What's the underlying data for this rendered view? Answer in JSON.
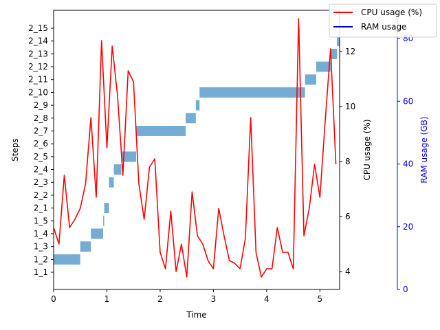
{
  "chart_data": {
    "type": "gantt-line",
    "xlabel": "Time",
    "ylabel": "Steps",
    "y2label": "CPU usage (%)",
    "y3label": "RAM usage (GB)",
    "xlim": [
      0,
      5.37
    ],
    "xticks": [
      0,
      1,
      2,
      3,
      4,
      5
    ],
    "step_labels": [
      "1_1",
      "1_2",
      "1_3",
      "1_4",
      "1_5",
      "2_1",
      "2_2",
      "2_3",
      "2_4",
      "2_5",
      "2_6",
      "2_7",
      "2_8",
      "2_9",
      "2_10",
      "2_11",
      "2_12",
      "2_13",
      "2_14",
      "2_15"
    ],
    "steps": [
      {
        "step": "1_2",
        "start": 0.0,
        "end": 0.5
      },
      {
        "step": "1_3",
        "start": 0.5,
        "end": 0.7
      },
      {
        "step": "1_4",
        "start": 0.7,
        "end": 0.93
      },
      {
        "step": "1_5",
        "start": 0.93,
        "end": 0.95
      },
      {
        "step": "2_1",
        "start": 0.95,
        "end": 1.04
      },
      {
        "step": "2_3",
        "start": 1.04,
        "end": 1.13
      },
      {
        "step": "2_4",
        "start": 1.13,
        "end": 1.27
      },
      {
        "step": "2_5",
        "start": 1.27,
        "end": 1.55
      },
      {
        "step": "2_7",
        "start": 1.55,
        "end": 2.48
      },
      {
        "step": "2_8",
        "start": 2.48,
        "end": 2.67
      },
      {
        "step": "2_9",
        "start": 2.67,
        "end": 2.74
      },
      {
        "step": "2_10",
        "start": 2.74,
        "end": 4.72
      },
      {
        "step": "2_11",
        "start": 4.72,
        "end": 4.93
      },
      {
        "step": "2_12",
        "start": 4.93,
        "end": 5.2
      },
      {
        "step": "2_13",
        "start": 5.2,
        "end": 5.32
      },
      {
        "step": "2_14",
        "start": 5.32,
        "end": 5.37
      }
    ],
    "cpu_ylim": [
      3.35,
      13.5
    ],
    "cpu_ticks": [
      4,
      6,
      8,
      10,
      12
    ],
    "cpu_series": {
      "name": "CPU usage (%)",
      "color": "#ff0000",
      "x": [
        0.0,
        0.1,
        0.2,
        0.3,
        0.4,
        0.5,
        0.6,
        0.7,
        0.8,
        0.9,
        1.0,
        1.1,
        1.2,
        1.3,
        1.4,
        1.5,
        1.6,
        1.7,
        1.8,
        1.9,
        2.0,
        2.1,
        2.2,
        2.3,
        2.4,
        2.5,
        2.6,
        2.7,
        2.8,
        2.9,
        3.0,
        3.1,
        3.2,
        3.3,
        3.4,
        3.5,
        3.6,
        3.7,
        3.8,
        3.9,
        4.0,
        4.1,
        4.2,
        4.3,
        4.4,
        4.5,
        4.6,
        4.7,
        4.8,
        4.9,
        5.0,
        5.1,
        5.2,
        5.3
      ],
      "values": [
        5.6,
        5.0,
        7.5,
        5.6,
        5.9,
        6.3,
        7.2,
        9.6,
        6.7,
        12.4,
        8.5,
        12.2,
        10.4,
        7.5,
        11.3,
        10.9,
        7.2,
        5.9,
        7.8,
        8.1,
        4.7,
        4.1,
        6.2,
        4.0,
        5.0,
        3.8,
        6.9,
        5.3,
        5.0,
        4.4,
        4.1,
        6.3,
        5.3,
        4.4,
        4.3,
        4.1,
        5.2,
        9.6,
        4.7,
        3.8,
        4.1,
        4.1,
        5.6,
        4.7,
        4.7,
        4.1,
        13.2,
        5.3,
        6.3,
        7.9,
        6.7,
        9.5,
        12.1,
        7.9
      ]
    },
    "ram_ylim": [
      0,
      89
    ],
    "ram_ticks": [
      0,
      20,
      40,
      60,
      80
    ],
    "ram_color": "#0000ff",
    "bar_color": "#75acd3",
    "legend": {
      "placement": "top-right",
      "entries": [
        {
          "label": "CPU usage (%)",
          "color": "#ff0000"
        },
        {
          "label": "RAM usage",
          "color": "#0000cc"
        }
      ]
    }
  }
}
